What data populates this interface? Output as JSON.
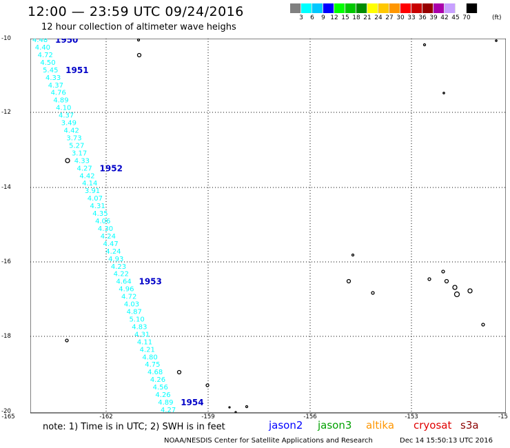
{
  "header": {
    "title": "12:00 — 23:59 UTC 09/24/2016",
    "subtitle": "12 hour collection of altimeter wave heighs"
  },
  "color_scale": {
    "colors": [
      "#808080",
      "#00ffff",
      "#00c8ff",
      "#0000ff",
      "#00ff00",
      "#00c800",
      "#008c00",
      "#ffff00",
      "#ffc800",
      "#ff9600",
      "#ff0000",
      "#c80000",
      "#960000",
      "#aa00aa",
      "#c8a0ff",
      "#ffffff",
      "#000000"
    ],
    "labels": [
      "3",
      "6",
      "9",
      "12",
      "15",
      "18",
      "21",
      "24",
      "27",
      "30",
      "33",
      "36",
      "39",
      "42",
      "45",
      "70"
    ],
    "unit": "(ft)"
  },
  "axes": {
    "x_ticks": [
      "-165",
      "-162",
      "-159",
      "-156",
      "-153",
      "-15"
    ],
    "y_ticks": [
      "-10",
      "-12",
      "-14",
      "-16",
      "-18",
      "-20"
    ]
  },
  "track": {
    "color": "#00ffff",
    "swh_values": [
      "4.48",
      "4.40",
      "4.72",
      "4.50",
      "5.45",
      "4.33",
      "4.37",
      "4.76",
      "4.89",
      "4.10",
      "4.37",
      "3.49",
      "4.42",
      "3.73",
      "5.27",
      "3.17",
      "4.33",
      "4.27",
      "4.42",
      "4.14",
      "3.91",
      "4.07",
      "4.31",
      "4.35",
      "4.06",
      "4.30",
      "4.24",
      "4.47",
      "4.24",
      "4.93",
      "4.23",
      "4.22",
      "4.64",
      "4.96",
      "4.72",
      "4.03",
      "4.87",
      "5.10",
      "4.83",
      "4.31",
      "4.11",
      "4.21",
      "4.80",
      "4.75",
      "4.68",
      "4.26",
      "4.56",
      "4.26",
      "4.89",
      "4.27"
    ],
    "time_labels": [
      "1950",
      "1951",
      "1952",
      "1953",
      "1954"
    ],
    "time_color": "#0000c8"
  },
  "note": "note: 1) Time is in UTC; 2) SWH is in feet",
  "satellites": [
    {
      "name": "jason2",
      "color": "#0000ff"
    },
    {
      "name": "jason3",
      "color": "#00a000"
    },
    {
      "name": "altika",
      "color": "#ff9600"
    },
    {
      "name": "cryosat",
      "color": "#e00000"
    },
    {
      "name": "s3a",
      "color": "#8b0000"
    }
  ],
  "footer": {
    "source": "NOAA/NESDIS Center for Satellite Applications and Research",
    "generated": "Dec 14 15:50:13 UTC 2016"
  }
}
